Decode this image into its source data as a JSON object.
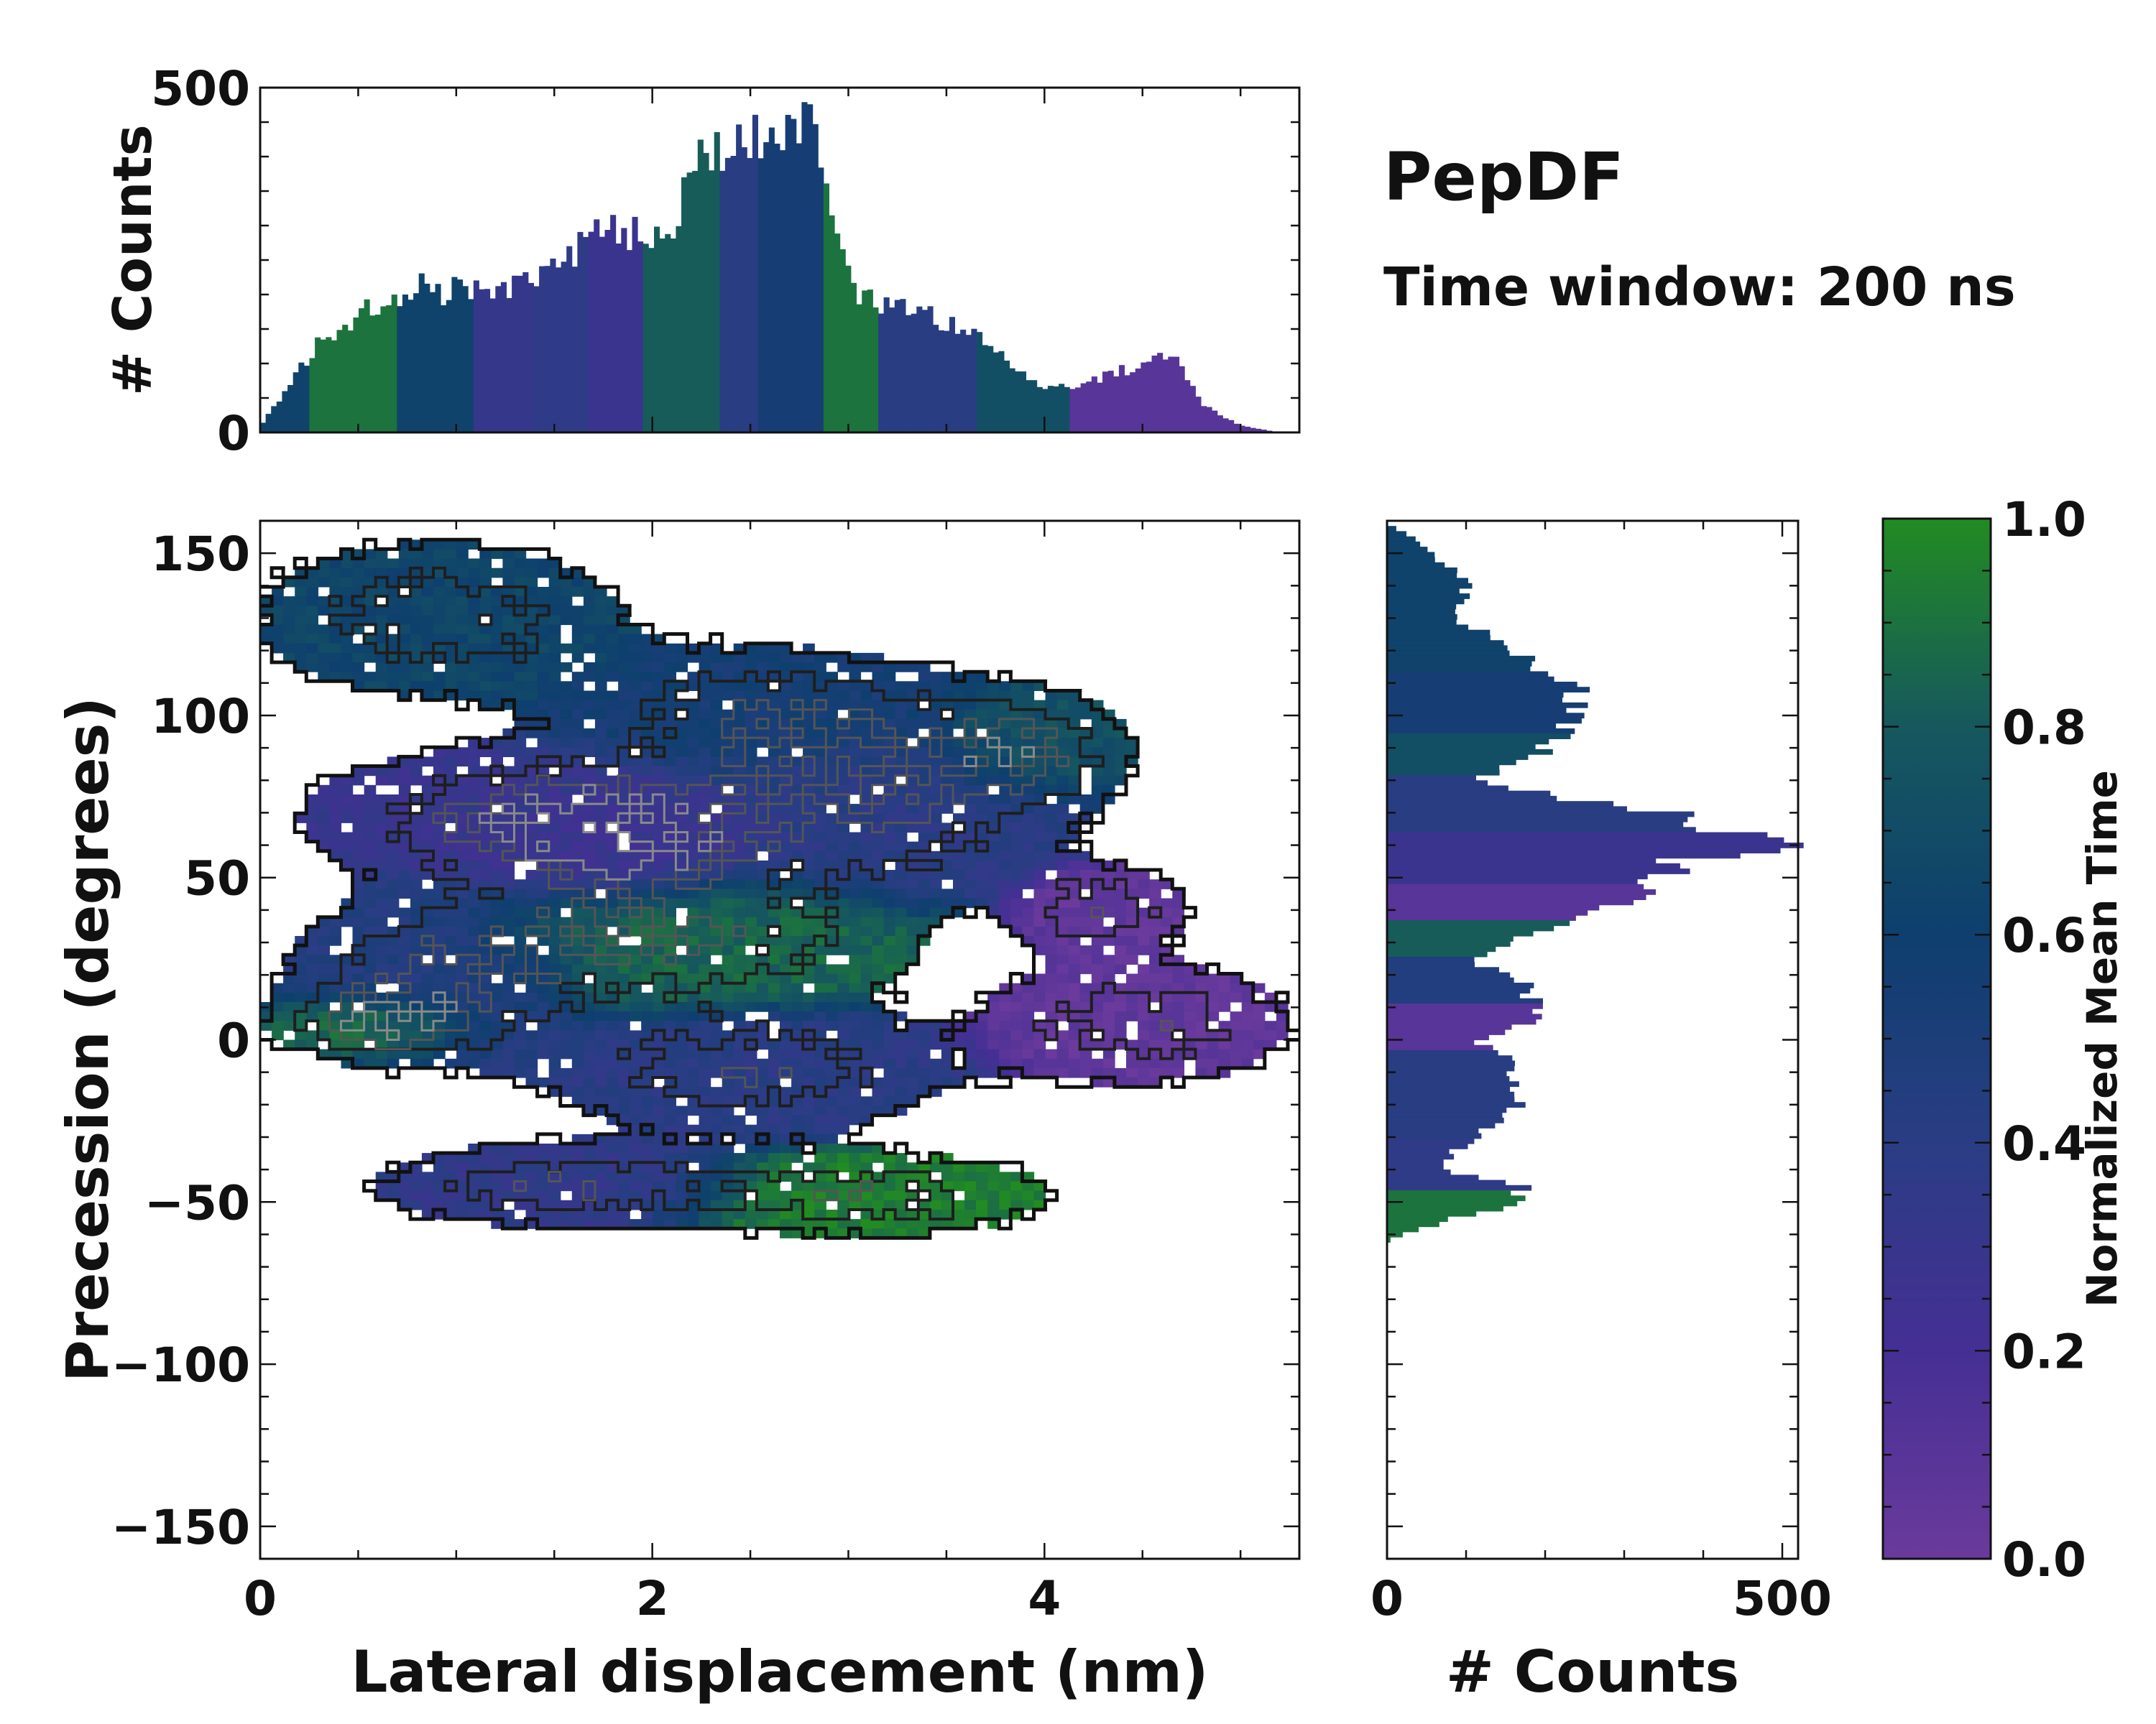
{
  "chart_data": [
    {
      "panel": "top-marginal",
      "type": "bar",
      "ylabel": "# Counts",
      "xlim": [
        0,
        5.3
      ],
      "ylim": [
        0,
        500
      ],
      "yticks": [
        0,
        500
      ],
      "anchors_x": [
        0.0,
        0.1,
        0.2,
        0.3,
        0.5,
        0.7,
        0.8,
        0.9,
        1.0,
        1.2,
        1.4,
        1.6,
        1.7,
        1.9,
        2.1,
        2.2,
        2.4,
        2.6,
        2.7,
        2.8,
        2.9,
        3.0,
        3.1,
        3.3,
        3.6,
        3.8,
        4.0,
        4.2,
        4.4,
        4.6,
        4.65,
        4.8,
        5.0,
        5.2
      ],
      "anchors_y": [
        10,
        50,
        90,
        130,
        170,
        200,
        220,
        200,
        210,
        200,
        230,
        260,
        310,
        290,
        270,
        380,
        410,
        440,
        460,
        440,
        360,
        220,
        190,
        180,
        150,
        110,
        60,
        70,
        90,
        110,
        120,
        40,
        10,
        0
      ]
    },
    {
      "panel": "main",
      "type": "heatmap",
      "xlabel": "Lateral displacement (nm)",
      "ylabel": "Precession (degrees)",
      "xlim": [
        0,
        5.3
      ],
      "ylim": [
        -160,
        160
      ],
      "xticks": [
        0,
        2,
        4
      ],
      "yticks": [
        150,
        100,
        50,
        0,
        -50,
        -100,
        -150
      ],
      "clusters": [
        {
          "x": 0.9,
          "y": 130,
          "rx": 1.1,
          "ry": 28,
          "c": 0.65
        },
        {
          "x": 1.3,
          "y": 70,
          "rx": 1.3,
          "ry": 22,
          "c": 0.3
        },
        {
          "x": 1.8,
          "y": 60,
          "rx": 0.9,
          "ry": 22,
          "c": 0.25
        },
        {
          "x": 2.6,
          "y": 100,
          "rx": 1.2,
          "ry": 25,
          "c": 0.55
        },
        {
          "x": 3.2,
          "y": 70,
          "rx": 1.1,
          "ry": 30,
          "c": 0.4
        },
        {
          "x": 2.2,
          "y": 30,
          "rx": 1.3,
          "ry": 25,
          "c": 0.85
        },
        {
          "x": 0.9,
          "y": 20,
          "rx": 0.9,
          "ry": 30,
          "c": 0.45
        },
        {
          "x": 2.5,
          "y": -10,
          "rx": 1.2,
          "ry": 22,
          "c": 0.4
        },
        {
          "x": 1.5,
          "y": -45,
          "rx": 1.1,
          "ry": 15,
          "c": 0.35
        },
        {
          "x": 3.1,
          "y": -48,
          "rx": 1.1,
          "ry": 15,
          "c": 0.95
        },
        {
          "x": 4.5,
          "y": 5,
          "rx": 0.9,
          "ry": 22,
          "c": 0.05
        },
        {
          "x": 4.3,
          "y": 40,
          "rx": 0.5,
          "ry": 15,
          "c": 0.05
        },
        {
          "x": 3.9,
          "y": 90,
          "rx": 0.6,
          "ry": 20,
          "c": 0.75
        },
        {
          "x": 0.6,
          "y": 5,
          "rx": 0.6,
          "ry": 12,
          "c": 0.95
        }
      ]
    },
    {
      "panel": "right-marginal",
      "type": "bar",
      "xlabel": "# Counts",
      "xlim": [
        0,
        520
      ],
      "xticks": [
        0,
        500
      ],
      "anchors_y": [
        158,
        150,
        140,
        130,
        120,
        110,
        100,
        90,
        80,
        75,
        70,
        65,
        60,
        55,
        50,
        45,
        40,
        30,
        25,
        20,
        10,
        5,
        0,
        -10,
        -20,
        -30,
        -40,
        -45,
        -50,
        -55,
        -60,
        -62
      ],
      "anchors_v": [
        10,
        60,
        100,
        90,
        150,
        230,
        240,
        200,
        110,
        220,
        350,
        420,
        480,
        380,
        340,
        330,
        250,
        170,
        110,
        150,
        200,
        190,
        110,
        170,
        180,
        110,
        60,
        160,
        190,
        90,
        20,
        0
      ]
    },
    {
      "panel": "colorbar",
      "type": "colorbar",
      "label": "Normalized Mean Time",
      "range": [
        0,
        1
      ],
      "ticks": [
        "0.0",
        "0.2",
        "0.4",
        "0.6",
        "0.8",
        "1.0"
      ],
      "stops": [
        "#6a3a9c",
        "#452f94",
        "#2a3d84",
        "#0e3f6e",
        "#16585e",
        "#228b22"
      ]
    }
  ],
  "title": "PepDF",
  "subtitle": "Time window: 200 ns"
}
